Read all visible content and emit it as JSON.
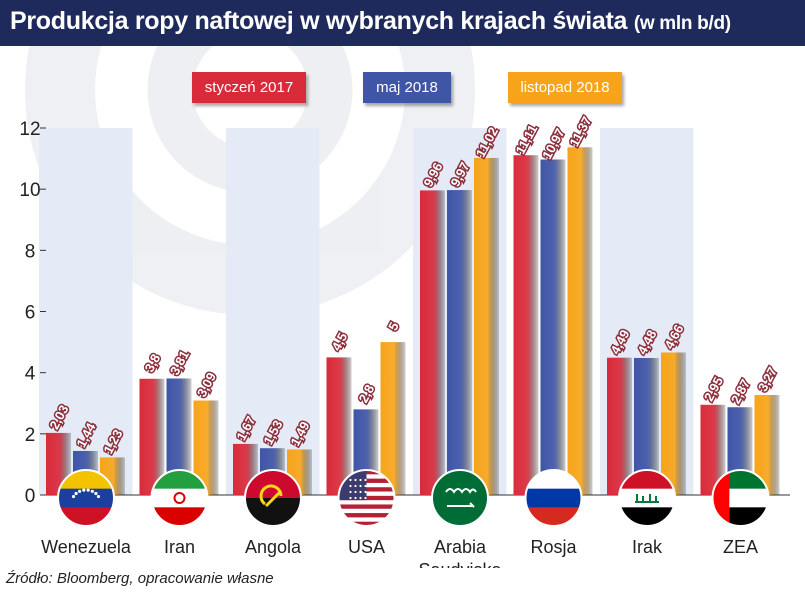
{
  "title": {
    "main": "Produkcja ropy naftowej w wybranych krajach świata",
    "unit": "(w mln b/d)"
  },
  "source": "Źródło: Bloomberg, opracowanie własne",
  "colors": {
    "title_bg": "#1f2a5c",
    "series": [
      "#d92a3a",
      "#3f55a6",
      "#f7a41a"
    ],
    "band": "#e4ebf6",
    "label_bg": "#8b2f3c",
    "label_border": "#ffffff"
  },
  "icons": [
    "flag-venezuela-icon",
    "flag-iran-icon",
    "flag-angola-icon",
    "flag-usa-icon",
    "flag-saudi-arabia-icon",
    "flag-russia-icon",
    "flag-iraq-icon",
    "flag-uae-icon"
  ],
  "chart_data": {
    "type": "bar",
    "title": "Produkcja ropy naftowej w wybranych krajach świata (w mln b/d)",
    "xlabel": "",
    "ylabel": "",
    "ylim": [
      0,
      12
    ],
    "yticks": [
      0,
      2,
      4,
      6,
      8,
      10,
      12
    ],
    "grid": false,
    "legend_position": "top",
    "categories": [
      "Wenezuela",
      "Iran",
      "Angola",
      "USA",
      "Arabia Saudyjska",
      "Rosja",
      "Irak",
      "ZEA"
    ],
    "category_lines": [
      [
        "Wenezuela"
      ],
      [
        "Iran"
      ],
      [
        "Angola"
      ],
      [
        "USA"
      ],
      [
        "Arabia",
        "Saudyjska"
      ],
      [
        "Rosja"
      ],
      [
        "Irak"
      ],
      [
        "ZEA"
      ]
    ],
    "series": [
      {
        "name": "styczeń 2017",
        "values": [
          2.03,
          3.8,
          1.67,
          4.5,
          9.96,
          11.11,
          4.49,
          2.95
        ],
        "labels": [
          "2,03",
          "3,8",
          "1,67",
          "4,5",
          "9,96",
          "11,11",
          "4,49",
          "2,95"
        ]
      },
      {
        "name": "maj 2018",
        "values": [
          1.44,
          3.81,
          1.53,
          2.8,
          9.97,
          10.97,
          4.48,
          2.87
        ],
        "labels": [
          "1,44",
          "3,81",
          "1,53",
          "2,8",
          "9,97",
          "10,97",
          "4,48",
          "2,87"
        ]
      },
      {
        "name": "listopad 2018",
        "values": [
          1.23,
          3.09,
          1.49,
          5,
          11.02,
          11.37,
          4.66,
          3.27
        ],
        "labels": [
          "1,23",
          "3,09",
          "1,49",
          "5",
          "11,02",
          "11,37",
          "4,66",
          "3,27"
        ]
      }
    ]
  }
}
